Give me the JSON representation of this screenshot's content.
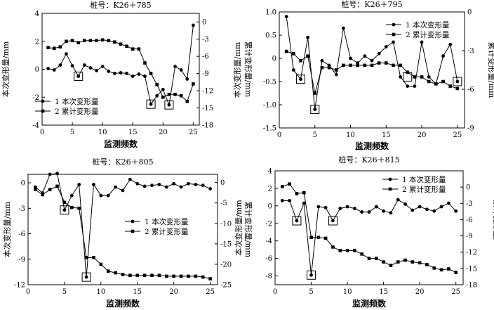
{
  "chart_data": [
    {
      "type": "line",
      "title": "桩号：K26＋785",
      "xlabel": "监测频数",
      "ylabel_left": "本次变形量/mm",
      "ylabel_right": "累计变形量/mm",
      "xlim": [
        0,
        26
      ],
      "xticks": [
        0,
        5,
        10,
        15,
        20,
        25
      ],
      "ylim_left": [
        -4,
        4
      ],
      "yticks_left": [
        -4,
        -2,
        0,
        2,
        4
      ],
      "ylim_right": [
        -18,
        1.5
      ],
      "yticks_right": [
        0,
        -3,
        -6,
        -9,
        -12,
        -15,
        -18
      ],
      "legend_position": "bottom-left",
      "x": [
        1,
        2,
        3,
        4,
        5,
        6,
        7,
        8,
        9,
        10,
        11,
        12,
        13,
        14,
        15,
        16,
        17,
        18,
        19,
        20,
        21,
        22,
        23,
        24,
        25
      ],
      "series": [
        {
          "name": "1 本次变形量",
          "axis": "left",
          "marker": "circle",
          "values": [
            0.05,
            -0.05,
            0.3,
            1.1,
            0.25,
            -0.5,
            0.3,
            0.1,
            -0.1,
            0.2,
            -0.15,
            -0.3,
            -0.25,
            -0.3,
            -0.5,
            -0.35,
            -0.5,
            -2.5,
            -1.9,
            -1.45,
            -2.55,
            0.2,
            -0.05,
            -0.7,
            3.15
          ]
        },
        {
          "name": "2 累计变形量",
          "axis": "left",
          "marker": "square",
          "values": [
            1.55,
            1.5,
            1.6,
            2.0,
            2.05,
            1.9,
            2.05,
            2.05,
            2.05,
            2.1,
            2.05,
            1.95,
            1.8,
            1.65,
            1.45,
            1.45,
            0.45,
            -0.3,
            -1.1,
            -2.0,
            -1.8,
            -1.8,
            -1.9,
            -2.3,
            -1.05
          ]
        }
      ],
      "boxed_points": [
        [
          6,
          -0.5
        ],
        [
          18,
          -2.5
        ],
        [
          21,
          -2.55
        ]
      ]
    },
    {
      "type": "line",
      "title": "桩号：K26＋795",
      "xlabel": "监测频数",
      "ylabel_left": "本次变形量/mm",
      "ylabel_right": "累计变形量/mm",
      "xlim": [
        0,
        26
      ],
      "xticks": [
        0,
        5,
        10,
        15,
        20,
        25
      ],
      "ylim_left": [
        -1.5,
        1.0
      ],
      "yticks_left": [
        -1.5,
        -1.0,
        -0.5,
        0,
        0.5,
        1.0
      ],
      "ylim_right": [
        -9,
        0
      ],
      "yticks_right": [
        0,
        -3,
        -6,
        -9
      ],
      "legend_position": "top-right",
      "x": [
        1,
        2,
        3,
        4,
        5,
        6,
        7,
        8,
        9,
        10,
        11,
        12,
        13,
        14,
        15,
        16,
        17,
        18,
        19,
        20,
        21,
        22,
        23,
        24,
        25
      ],
      "series": [
        {
          "name": "1 本次变形量",
          "axis": "left",
          "marker": "circle",
          "values": [
            0.9,
            -0.25,
            -0.45,
            0.45,
            -1.1,
            -0.05,
            -0.15,
            -0.35,
            0.65,
            0.0,
            -0.1,
            0.05,
            -0.05,
            0.1,
            0.25,
            0.35,
            -0.4,
            -0.6,
            -0.6,
            0.35,
            -0.4,
            -0.55,
            0.05,
            0.3,
            -0.5
          ]
        },
        {
          "name": "2 累计变形量",
          "axis": "left",
          "marker": "square",
          "values": [
            0.15,
            0.1,
            -0.05,
            0.05,
            -0.75,
            -0.2,
            -0.2,
            -0.25,
            -0.15,
            -0.15,
            -0.15,
            -0.15,
            -0.15,
            -0.1,
            -0.1,
            -0.15,
            -0.15,
            -0.3,
            -0.4,
            -0.4,
            -0.5,
            -0.55,
            -0.5,
            -0.6,
            -0.65
          ]
        }
      ],
      "boxed_points": [
        [
          3,
          -0.45
        ],
        [
          5,
          -1.1
        ],
        [
          18,
          -0.4
        ],
        [
          25,
          -0.5
        ]
      ]
    },
    {
      "type": "line",
      "title": "桩号：K26＋805",
      "xlabel": "监测频数",
      "ylabel_left": "本次变形量/mm",
      "ylabel_right": "累计变形量/mm",
      "xlim": [
        0,
        26
      ],
      "xticks": [
        0,
        5,
        10,
        15,
        20,
        25
      ],
      "ylim_left": [
        -12,
        1
      ],
      "yticks_left": [
        0,
        -3,
        -6,
        -9,
        -12
      ],
      "ylim_right": [
        -25,
        2
      ],
      "yticks_right": [
        0,
        -5,
        -10,
        -15,
        -20,
        -25
      ],
      "legend_position": "middle-right",
      "x": [
        1,
        2,
        3,
        4,
        5,
        6,
        7,
        8,
        9,
        10,
        11,
        12,
        13,
        14,
        15,
        16,
        17,
        18,
        19,
        20,
        21,
        22,
        23,
        24,
        25
      ],
      "series": [
        {
          "name": "1 本次变形量",
          "axis": "left",
          "marker": "circle",
          "values": [
            -0.5,
            -1.2,
            1.0,
            1.1,
            -3.2,
            -1.5,
            -0.2,
            -11.1,
            -0.2,
            -1.5,
            -1.5,
            -0.5,
            -0.9,
            0.4,
            -0.1,
            -0.4,
            -0.3,
            -0.2,
            -0.5,
            -0.1,
            -0.5,
            -0.1,
            -0.2,
            -0.3,
            -0.7
          ]
        },
        {
          "name": "2 累计变形量",
          "axis": "left",
          "marker": "square",
          "values": [
            -0.8,
            -1.4,
            -0.8,
            -0.4,
            -2.3,
            -2.9,
            -3.0,
            -8.8,
            -8.8,
            -9.6,
            -10.4,
            -10.6,
            -10.8,
            -10.9,
            -10.9,
            -10.9,
            -10.9,
            -10.9,
            -11.0,
            -11.0,
            -11.0,
            -11.0,
            -11.0,
            -11.1,
            -11.3
          ]
        }
      ],
      "boxed_points": [
        [
          5,
          -3.2
        ],
        [
          8,
          -11.1
        ]
      ]
    },
    {
      "type": "line",
      "title": "桩号：K26＋815",
      "xlabel": "监测频数",
      "ylabel_left": "本次变形量/mm",
      "ylabel_right": "累计变形量/mm",
      "xlim": [
        0,
        26
      ],
      "xticks": [
        0,
        5,
        10,
        15,
        20,
        25
      ],
      "ylim_left": [
        -9,
        4
      ],
      "yticks_left": [
        -8,
        -6,
        -4,
        -2,
        0,
        2,
        4
      ],
      "ylim_right": [
        -18,
        3
      ],
      "yticks_right": [
        0,
        -3,
        -6,
        -9,
        -12,
        -15,
        -18
      ],
      "legend_position": "top-right",
      "x": [
        1,
        2,
        3,
        4,
        5,
        6,
        7,
        8,
        9,
        10,
        11,
        12,
        13,
        14,
        15,
        16,
        17,
        18,
        19,
        20,
        21,
        22,
        23,
        24,
        25
      ],
      "series": [
        {
          "name": "1 本次变形量",
          "axis": "left",
          "marker": "circle",
          "values": [
            0.6,
            0.6,
            -1.7,
            0.3,
            -7.9,
            -0.1,
            -0.2,
            -1.7,
            -0.3,
            -0.1,
            -0.3,
            -0.7,
            -0.7,
            -0.1,
            -0.6,
            -0.8,
            0.7,
            0.2,
            -0.5,
            -0.1,
            -0.4,
            -0.6,
            -0.1,
            0.3,
            -0.6
          ]
        },
        {
          "name": "2 累计变形量",
          "axis": "left",
          "marker": "square",
          "values": [
            2.2,
            2.5,
            1.4,
            1.5,
            -3.6,
            -3.6,
            -3.7,
            -4.7,
            -5.1,
            -5.1,
            -5.1,
            -5.5,
            -6.0,
            -6.0,
            -6.4,
            -6.8,
            -6.4,
            -6.2,
            -6.4,
            -6.5,
            -6.7,
            -7.1,
            -7.3,
            -7.2,
            -7.6
          ]
        }
      ],
      "boxed_points": [
        [
          3,
          -1.7
        ],
        [
          5,
          -7.9
        ],
        [
          8,
          -1.7
        ]
      ]
    }
  ]
}
